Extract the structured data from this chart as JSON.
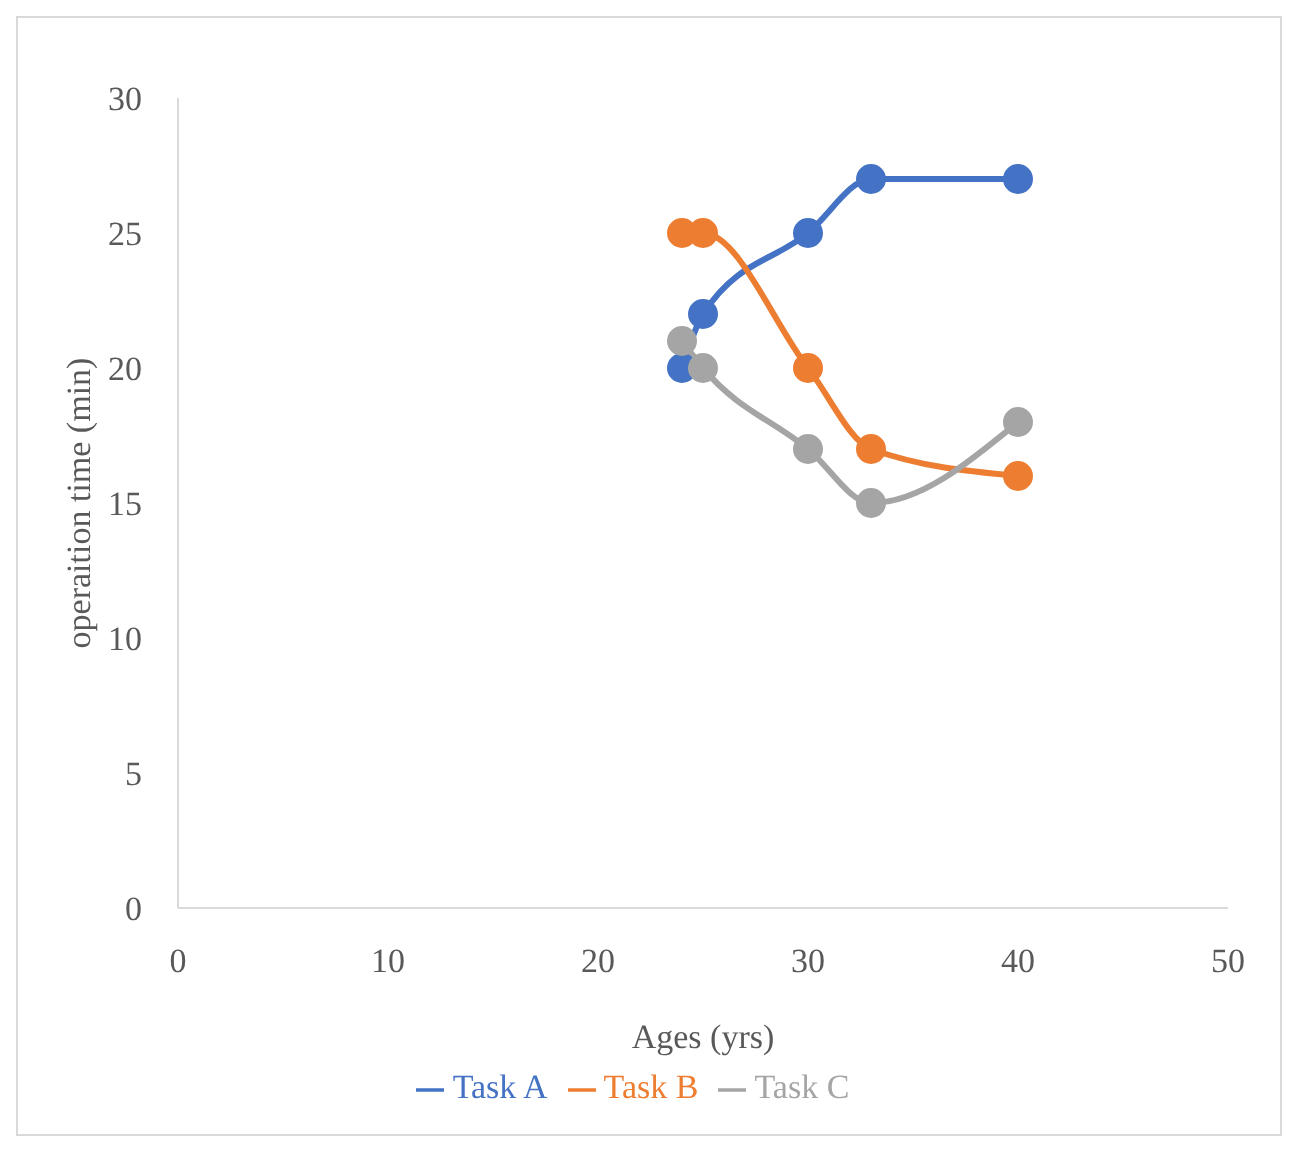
{
  "chart_data": {
    "type": "line",
    "xlabel": "Ages (yrs)",
    "ylabel": "operaition time (min)",
    "x": [
      24,
      25,
      30,
      33,
      40
    ],
    "series": [
      {
        "name": "Task A",
        "color": "#4472c4",
        "values": [
          20,
          22,
          25,
          27,
          27
        ]
      },
      {
        "name": "Task B",
        "color": "#ed7d31",
        "values": [
          25,
          25,
          20,
          17,
          16
        ]
      },
      {
        "name": "Task C",
        "color": "#a5a5a5",
        "values": [
          21,
          20,
          17,
          15,
          18
        ]
      }
    ],
    "xlim": [
      0,
      50
    ],
    "xticks": [
      0,
      10,
      20,
      30,
      40,
      50
    ],
    "ylim": [
      0,
      30
    ],
    "yticks": [
      0,
      5,
      10,
      15,
      20,
      25,
      30
    ],
    "grid": false,
    "legend": "bottom",
    "marker": "circle",
    "line_style": "solid"
  }
}
